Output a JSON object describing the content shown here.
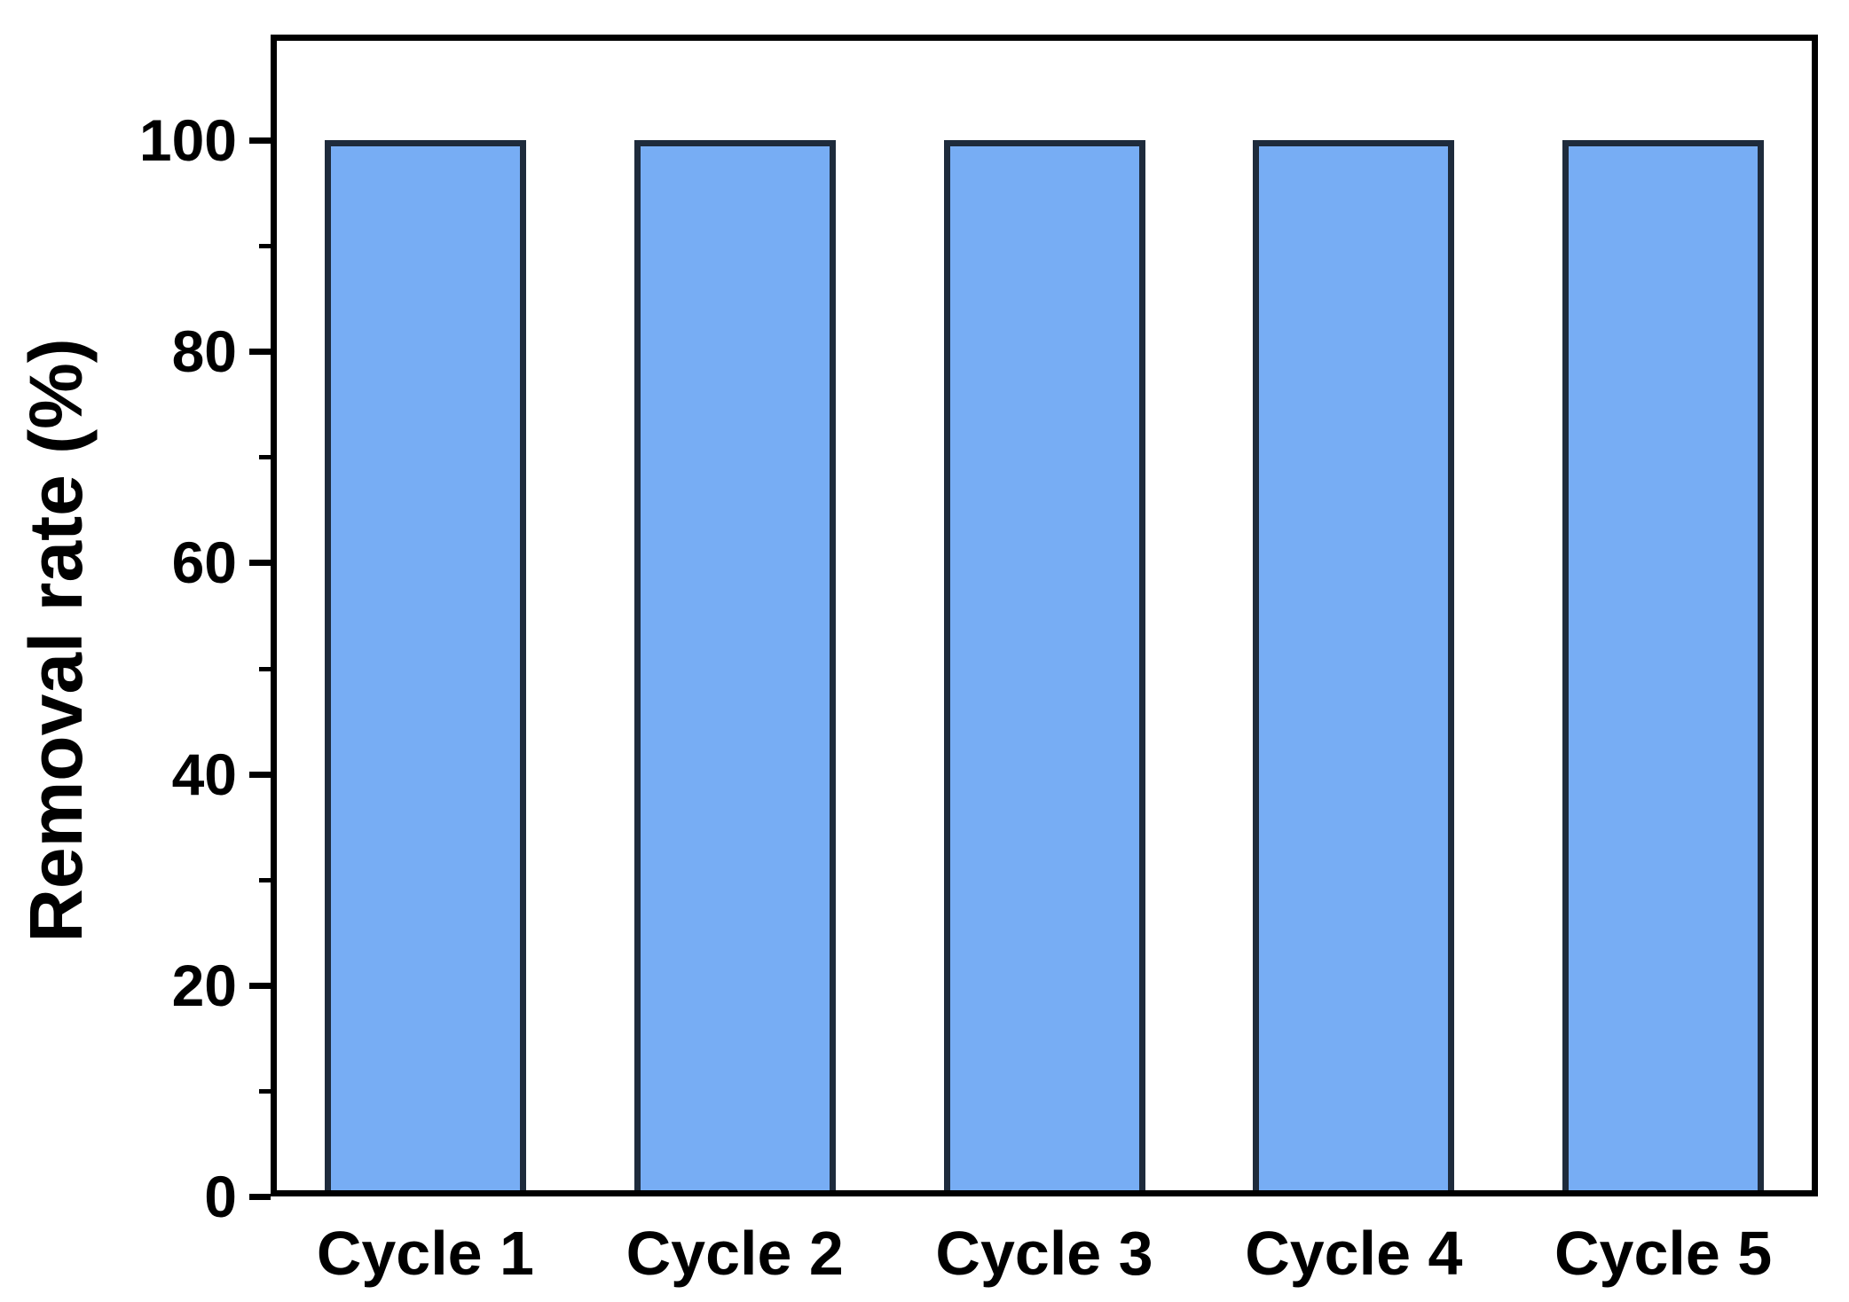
{
  "chart_data": {
    "type": "bar",
    "title": "",
    "xlabel": "",
    "ylabel": "Removal rate (%)",
    "categories": [
      "Cycle 1",
      "Cycle 2",
      "Cycle 3",
      "Cycle 4",
      "Cycle 5"
    ],
    "values": [
      100,
      100,
      100,
      100,
      100
    ],
    "ylim": [
      0,
      110
    ],
    "yticks_major": [
      0,
      20,
      40,
      60,
      80,
      100
    ],
    "yticks_minor": [
      10,
      30,
      50,
      70,
      90
    ],
    "grid": false,
    "legend": false,
    "frame": "boxed",
    "tick_direction": "out",
    "colors": {
      "bar_fill": "#77ADF4",
      "bar_stroke": "#1E2B3C",
      "axis": "#000000",
      "background": "#FFFFFF"
    }
  }
}
